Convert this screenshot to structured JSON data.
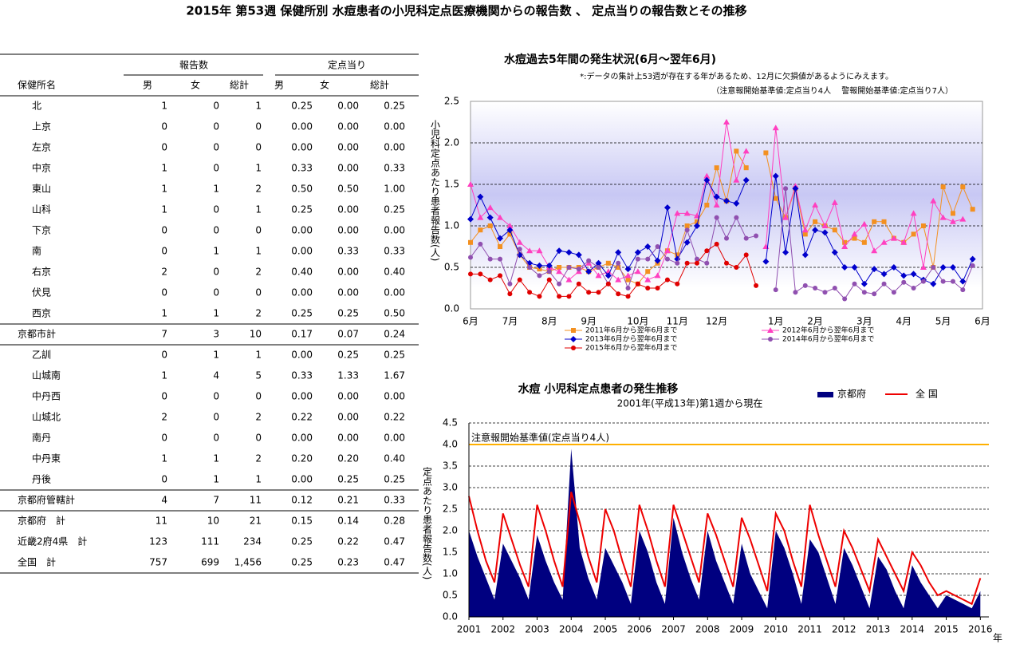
{
  "header": {
    "title": "2015年 第53週 保健所別 水痘患者の小児科定点医療機関からの報告数 、 定点当りの報告数とその推移"
  },
  "table": {
    "group_headers": [
      "報告数",
      "定点当り"
    ],
    "columns": [
      "保健所名",
      "男",
      "女",
      "総計",
      "男",
      "女",
      "総計"
    ],
    "rows": [
      [
        "北",
        "1",
        "0",
        "1",
        "0.25",
        "0.00",
        "0.25"
      ],
      [
        "上京",
        "0",
        "0",
        "0",
        "0.00",
        "0.00",
        "0.00"
      ],
      [
        "左京",
        "0",
        "0",
        "0",
        "0.00",
        "0.00",
        "0.00"
      ],
      [
        "中京",
        "1",
        "0",
        "1",
        "0.33",
        "0.00",
        "0.33"
      ],
      [
        "東山",
        "1",
        "1",
        "2",
        "0.50",
        "0.50",
        "1.00"
      ],
      [
        "山科",
        "1",
        "0",
        "1",
        "0.25",
        "0.00",
        "0.25"
      ],
      [
        "下京",
        "0",
        "0",
        "0",
        "0.00",
        "0.00",
        "0.00"
      ],
      [
        "南",
        "0",
        "1",
        "1",
        "0.00",
        "0.33",
        "0.33"
      ],
      [
        "右京",
        "2",
        "0",
        "2",
        "0.40",
        "0.00",
        "0.40"
      ],
      [
        "伏見",
        "0",
        "0",
        "0",
        "0.00",
        "0.00",
        "0.00"
      ],
      [
        "西京",
        "1",
        "1",
        "2",
        "0.25",
        "0.25",
        "0.50"
      ],
      [
        "京都市計",
        "7",
        "3",
        "10",
        "0.17",
        "0.07",
        "0.24"
      ],
      [
        "乙訓",
        "0",
        "1",
        "1",
        "0.00",
        "0.25",
        "0.25"
      ],
      [
        "山城南",
        "1",
        "4",
        "5",
        "0.33",
        "1.33",
        "1.67"
      ],
      [
        "中丹西",
        "0",
        "0",
        "0",
        "0.00",
        "0.00",
        "0.00"
      ],
      [
        "山城北",
        "2",
        "0",
        "2",
        "0.22",
        "0.00",
        "0.22"
      ],
      [
        "南丹",
        "0",
        "0",
        "0",
        "0.00",
        "0.00",
        "0.00"
      ],
      [
        "中丹東",
        "1",
        "1",
        "2",
        "0.20",
        "0.20",
        "0.40"
      ],
      [
        "丹後",
        "0",
        "1",
        "1",
        "0.00",
        "0.25",
        "0.25"
      ],
      [
        "京都府管轄計",
        "4",
        "7",
        "11",
        "0.12",
        "0.21",
        "0.33"
      ],
      [
        "京都府　計",
        "11",
        "10",
        "21",
        "0.15",
        "0.14",
        "0.28"
      ],
      [
        "近畿2府4県　計",
        "123",
        "111",
        "234",
        "0.25",
        "0.22",
        "0.47"
      ],
      [
        "全国　計",
        "757",
        "699",
        "1,456",
        "0.25",
        "0.23",
        "0.47"
      ]
    ]
  },
  "chart_data": [
    {
      "type": "line",
      "title": "水痘過去5年間の発生状況(6月～翌年6月)",
      "notes": [
        "*:データの集計上53週が存在する年があるため、12月に欠損値があるようにみえます。",
        "（注意報開始基準値:定点当り4人　 警報開始基準値:定点当り7人）"
      ],
      "y_label": "小児科定点あたり患者報告数(人)",
      "categories": [
        "6月",
        null,
        null,
        null,
        "7月",
        null,
        null,
        null,
        "8月",
        null,
        null,
        null,
        "9月",
        null,
        null,
        null,
        null,
        "10月",
        null,
        null,
        null,
        "11月",
        null,
        null,
        null,
        "12月",
        null,
        null,
        null,
        null,
        null,
        "1月",
        null,
        null,
        null,
        "2月",
        null,
        null,
        null,
        null,
        "3月",
        null,
        null,
        null,
        "4月",
        null,
        null,
        null,
        "5月",
        null,
        null,
        null,
        "6月"
      ],
      "ylim": [
        0,
        2.5
      ],
      "yticks": [
        {
          "value": 0,
          "label": "0.0"
        },
        0.5,
        {
          "value": 1,
          "label": "1.0"
        },
        1.5,
        {
          "value": 2,
          "label": "2.0"
        },
        2.5
      ],
      "grid": true,
      "series": [
        {
          "name": "2011年6月から翌年6月まで",
          "color": "#f39020",
          "marker": "square",
          "values": [
            0.8,
            0.95,
            1.0,
            0.75,
            0.9,
            0.65,
            0.5,
            0.48,
            0.45,
            0.5,
            0.5,
            0.5,
            0.45,
            0.5,
            0.55,
            0.5,
            0.35,
            0.3,
            0.45,
            0.55,
            0.7,
            0.65,
            1.0,
            1.05,
            1.25,
            1.7,
            1.3,
            1.9,
            1.7,
            null,
            1.88,
            1.33,
            1.1,
            1.45,
            0.9,
            1.05,
            1.0,
            0.95,
            0.8,
            0.85,
            0.8,
            1.05,
            1.05,
            0.85,
            0.8,
            0.9,
            1.0,
            0.5,
            1.47,
            1.15,
            1.47,
            1.2,
            null
          ]
        },
        {
          "name": "2012年6月から翌年6月まで",
          "color": "#ff40c0",
          "marker": "triangle",
          "values": [
            1.5,
            1.1,
            1.22,
            1.1,
            1.0,
            0.8,
            0.7,
            0.7,
            0.5,
            0.45,
            0.35,
            0.45,
            0.55,
            0.4,
            0.45,
            0.35,
            0.4,
            0.45,
            0.35,
            0.4,
            0.7,
            1.15,
            1.15,
            1.12,
            1.6,
            1.25,
            2.25,
            1.55,
            1.9,
            null,
            0.75,
            2.18,
            1.1,
            1.48,
            0.95,
            1.25,
            1.0,
            1.28,
            0.75,
            0.9,
            1.02,
            0.7,
            0.8,
            0.85,
            0.8,
            1.15,
            0.5,
            1.3,
            1.1,
            1.05,
            1.08,
            null,
            null
          ]
        },
        {
          "name": "2013年6月から翌年6月まで",
          "color": "#0000cc",
          "marker": "diamond",
          "values": [
            1.08,
            1.35,
            1.1,
            0.85,
            0.95,
            0.65,
            0.55,
            0.52,
            0.52,
            0.7,
            0.68,
            0.65,
            0.45,
            0.55,
            0.4,
            0.68,
            0.48,
            0.68,
            0.75,
            0.58,
            1.22,
            0.6,
            0.8,
            1.0,
            1.55,
            1.35,
            1.3,
            1.27,
            1.55,
            null,
            0.57,
            1.6,
            0.68,
            1.45,
            0.65,
            0.95,
            0.92,
            0.68,
            0.5,
            0.5,
            0.3,
            0.48,
            0.42,
            0.5,
            0.4,
            0.42,
            0.35,
            0.3,
            0.5,
            0.5,
            0.33,
            0.6,
            null
          ]
        },
        {
          "name": "2014年6月から翌年6月まで",
          "color": "#9050b0",
          "marker": "circle",
          "values": [
            0.62,
            0.78,
            0.6,
            0.6,
            0.3,
            0.72,
            0.5,
            0.4,
            0.45,
            0.3,
            0.5,
            0.48,
            0.58,
            0.5,
            0.3,
            0.55,
            0.25,
            0.6,
            0.6,
            0.75,
            0.6,
            0.55,
            0.95,
            0.6,
            0.55,
            1.1,
            0.85,
            1.1,
            0.85,
            0.88,
            null,
            0.23,
            1.45,
            0.2,
            0.28,
            0.25,
            0.2,
            0.25,
            0.12,
            0.3,
            0.2,
            0.18,
            0.3,
            0.2,
            0.32,
            0.25,
            0.33,
            0.5,
            0.33,
            0.33,
            0.23,
            0.52,
            null
          ]
        },
        {
          "name": "2015年6月から翌年6月まで",
          "color": "#e00000",
          "marker": "circle",
          "values": [
            0.42,
            0.42,
            0.35,
            0.4,
            0.18,
            0.35,
            0.2,
            0.15,
            0.35,
            0.15,
            0.15,
            0.3,
            0.2,
            0.2,
            0.3,
            0.18,
            0.15,
            0.3,
            0.25,
            0.25,
            0.35,
            0.3,
            0.55,
            0.55,
            0.7,
            0.78,
            0.55,
            0.5,
            0.65,
            0.28,
            null,
            null,
            null,
            null,
            null,
            null,
            null,
            null,
            null,
            null,
            null,
            null,
            null,
            null,
            null,
            null,
            null,
            null,
            null,
            null,
            null,
            null,
            null
          ]
        }
      ]
    },
    {
      "type": "area",
      "title": "水痘  小児科定点患者の発生推移",
      "subtitle": "2001年(平成13年)第1週から現在",
      "y_label": "定点あたり患者報告数(人)",
      "x_label": "年",
      "x": [
        2001,
        2001.25,
        2001.5,
        2001.75,
        2002,
        2002.25,
        2002.5,
        2002.75,
        2003,
        2003.25,
        2003.5,
        2003.75,
        2004,
        2004.25,
        2004.5,
        2004.75,
        2005,
        2005.25,
        2005.5,
        2005.75,
        2006,
        2006.25,
        2006.5,
        2006.75,
        2007,
        2007.25,
        2007.5,
        2007.75,
        2008,
        2008.25,
        2008.5,
        2008.75,
        2009,
        2009.25,
        2009.5,
        2009.75,
        2010,
        2010.25,
        2010.5,
        2010.75,
        2011,
        2011.25,
        2011.5,
        2011.75,
        2012,
        2012.25,
        2012.5,
        2012.75,
        2013,
        2013.25,
        2013.5,
        2013.75,
        2014,
        2014.25,
        2014.5,
        2014.75,
        2015,
        2015.25,
        2015.5,
        2015.75,
        2016
      ],
      "xlim": [
        2001,
        2016.25
      ],
      "xticks": [
        2001,
        2002,
        2003,
        2004,
        2005,
        2006,
        2007,
        2008,
        2009,
        2010,
        2011,
        2012,
        2013,
        2014,
        2015,
        2016
      ],
      "ylim": [
        0,
        4.5
      ],
      "yticks": [
        {
          "value": 0,
          "label": "0.0"
        },
        0.5,
        {
          "value": 1,
          "label": "1.0"
        },
        1.5,
        {
          "value": 2,
          "label": "2.0"
        },
        2.5,
        {
          "value": 3,
          "label": "3.0"
        },
        3.5,
        {
          "value": 4,
          "label": "4.0"
        },
        4.5
      ],
      "grid": true,
      "threshold": {
        "value": 4,
        "label": "注意報開始基準値(定点当り4人)",
        "color": "#ffb000"
      },
      "series": [
        {
          "name": "京都府",
          "type": "area",
          "color": "#000080",
          "values": [
            2.0,
            1.4,
            0.9,
            0.4,
            1.7,
            1.3,
            0.9,
            0.4,
            1.9,
            1.3,
            0.8,
            0.4,
            3.9,
            1.6,
            0.9,
            0.4,
            1.6,
            1.2,
            0.8,
            0.3,
            2.0,
            1.5,
            0.8,
            0.3,
            2.3,
            1.5,
            0.9,
            0.4,
            2.0,
            1.3,
            0.8,
            0.3,
            1.7,
            1.0,
            0.6,
            0.2,
            2.0,
            1.6,
            1.0,
            0.3,
            1.8,
            1.5,
            0.9,
            0.3,
            1.6,
            1.2,
            0.7,
            0.2,
            1.4,
            1.1,
            0.6,
            0.2,
            1.2,
            0.8,
            0.5,
            0.2,
            0.5,
            0.4,
            0.3,
            0.2,
            0.6
          ]
        },
        {
          "name": "全 国",
          "type": "line",
          "color": "#ee0000",
          "values": [
            2.8,
            2.0,
            1.3,
            0.8,
            2.4,
            1.8,
            1.2,
            0.7,
            2.6,
            2.0,
            1.3,
            0.7,
            2.9,
            2.2,
            1.4,
            0.8,
            2.5,
            2.0,
            1.3,
            0.7,
            2.6,
            2.0,
            1.3,
            0.7,
            2.6,
            2.0,
            1.4,
            0.8,
            2.4,
            1.9,
            1.3,
            0.7,
            2.3,
            1.8,
            1.2,
            0.6,
            2.4,
            2.0,
            1.3,
            0.7,
            2.6,
            1.9,
            1.3,
            0.7,
            2.0,
            1.6,
            1.1,
            0.6,
            1.8,
            1.4,
            1.0,
            0.6,
            1.5,
            1.2,
            0.8,
            0.5,
            0.6,
            0.5,
            0.4,
            0.3,
            0.9
          ]
        }
      ]
    }
  ]
}
